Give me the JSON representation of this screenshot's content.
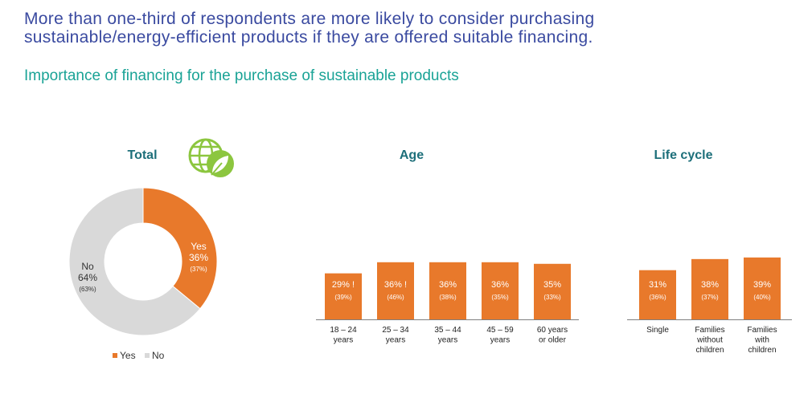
{
  "headline": {
    "line1": "More than one-third of respondents are more likely to consider purchasing",
    "line2": "sustainable/energy-efficient products if they are offered suitable financing."
  },
  "subheadline": "Importance of financing for the purchase of sustainable products",
  "icon": "globe-leaf-icon",
  "colors": {
    "headline": "#3a4aa0",
    "subhead": "#1aa396",
    "panel_title": "#1d6f7a",
    "yes": "#e8792b",
    "no": "#d9d9d9"
  },
  "chart_data": [
    {
      "type": "pie",
      "title": "Total",
      "donut": true,
      "slices": [
        {
          "label": "Yes",
          "value": 36,
          "display": "36%",
          "prior": "(37%)"
        },
        {
          "label": "No",
          "value": 64,
          "display": "64%",
          "prior": "(63%)"
        }
      ],
      "legend": [
        "Yes",
        "No"
      ],
      "legend_position": "bottom"
    },
    {
      "type": "bar",
      "title": "Age",
      "categories": [
        "18 – 24 years",
        "25 – 34 years",
        "35 – 44 years",
        "45 – 59 years",
        "60 years or older"
      ],
      "category_lines": [
        [
          "18 – 24",
          "years"
        ],
        [
          "25 – 34",
          "years"
        ],
        [
          "35 – 44",
          "years"
        ],
        [
          "45 – 59",
          "years"
        ],
        [
          "60 years",
          "or older"
        ]
      ],
      "values": [
        29,
        36,
        36,
        36,
        35
      ],
      "labels": [
        "29% !",
        "36% !",
        "36%",
        "36%",
        "35%"
      ],
      "prior": [
        "(39%)",
        "(46%)",
        "(38%)",
        "(35%)",
        "(33%)"
      ],
      "ylim": [
        0,
        45
      ]
    },
    {
      "type": "bar",
      "title": "Life cycle",
      "categories": [
        "Single",
        "Families without children",
        "Families with children"
      ],
      "category_lines": [
        [
          "Single"
        ],
        [
          "Families",
          "without",
          "children"
        ],
        [
          "Families",
          "with",
          "children"
        ]
      ],
      "values": [
        31,
        38,
        39
      ],
      "labels": [
        "31%",
        "38%",
        "39%"
      ],
      "prior": [
        "(36%)",
        "(37%)",
        "(40%)"
      ],
      "ylim": [
        0,
        45
      ]
    }
  ]
}
